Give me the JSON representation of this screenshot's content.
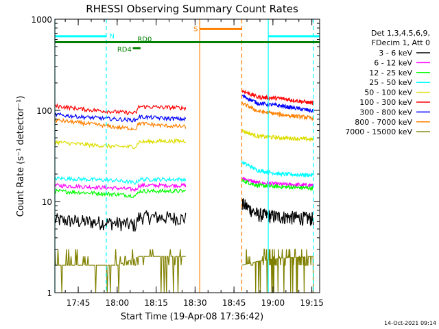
{
  "chart_data": {
    "type": "line",
    "title": "RHESSI Observing Summary Count Rates",
    "xlabel": "Start Time (19-Apr-08 17:36:42)",
    "ylabel": "Count Rate (s⁻¹ detector⁻¹)",
    "ylog": true,
    "ylim": [
      1,
      1000
    ],
    "yticks": [
      1,
      10,
      100,
      1000
    ],
    "ytick_labels": [
      "1",
      "10",
      "100",
      "1000"
    ],
    "xlim_minutes": [
      17.6,
      19.3
    ],
    "xticks": [
      "17:45",
      "18:00",
      "18:15",
      "18:30",
      "18:45",
      "19:00",
      "19:15"
    ],
    "xtick_values": [
      17.75,
      18.0,
      18.25,
      18.5,
      18.75,
      19.0,
      19.25
    ],
    "footer": "14-Oct-2021 09:14",
    "legend": {
      "position": "right",
      "header": [
        "Det 1,3,4,5,6,9,",
        "FDecim 1, Att 0"
      ],
      "entries": [
        {
          "label": "3 - 6 keV",
          "color": "#000000"
        },
        {
          "label": "6 - 12 keV",
          "color": "#ff00ff"
        },
        {
          "label": "12 - 25 keV",
          "color": "#00ff00"
        },
        {
          "label": "25 - 50 keV",
          "color": "#00ffff"
        },
        {
          "label": "50 - 100 keV",
          "color": "#dddd00"
        },
        {
          "label": "100 - 300 keV",
          "color": "#ff0000"
        },
        {
          "label": "300 - 800 keV",
          "color": "#0000ff"
        },
        {
          "label": "800 - 7000 keV",
          "color": "#ff8000"
        },
        {
          "label": "7000 - 15000 keV",
          "color": "#808000"
        }
      ]
    },
    "flags": [
      {
        "label": "N",
        "color": "#00ffff",
        "x0": 17.6,
        "x1": 17.93,
        "y": 650,
        "label_x": 17.95
      },
      {
        "label": "N",
        "color": "#00ffff",
        "x0": 18.97,
        "x1": 19.3,
        "y": 650
      },
      {
        "label": "S",
        "color": "#ff8000",
        "x0": 18.53,
        "x1": 18.8,
        "y": 780,
        "label_x": 18.49
      },
      {
        "label": "RD0",
        "color": "#008000",
        "x0": 17.6,
        "x1": 19.3,
        "y": 560,
        "label_x": 18.13
      },
      {
        "label": "RD4",
        "color": "#008000",
        "x0": 18.1,
        "x1": 18.15,
        "y": 480,
        "label_x": 18.0
      }
    ],
    "vlines": [
      {
        "x": 17.6,
        "color": "#00ffff",
        "dash": false
      },
      {
        "x": 17.93,
        "color": "#00ffff",
        "dash": true
      },
      {
        "x": 18.97,
        "color": "#00ffff",
        "dash": false
      },
      {
        "x": 19.26,
        "color": "#00ffff",
        "dash": true
      },
      {
        "x": 18.53,
        "color": "#ff8000",
        "dash": false
      },
      {
        "x": 18.8,
        "color": "#ff8000",
        "dash": true
      }
    ],
    "segments": [
      [
        17.6,
        18.44
      ],
      [
        18.8,
        19.26
      ]
    ],
    "series": [
      {
        "name": "3 - 6 keV",
        "color": "#000000",
        "seg1": [
          [
            17.6,
            6.3
          ],
          [
            17.8,
            6.0
          ],
          [
            18.0,
            5.8
          ],
          [
            18.12,
            5.5
          ],
          [
            18.14,
            6.8
          ],
          [
            18.3,
            6.7
          ],
          [
            18.44,
            6.5
          ]
        ],
        "seg2": [
          [
            18.8,
            9.5
          ],
          [
            18.9,
            7.2
          ],
          [
            19.05,
            6.8
          ],
          [
            19.26,
            6.5
          ]
        ]
      },
      {
        "name": "6 - 12 keV",
        "color": "#ff00ff",
        "seg1": [
          [
            17.6,
            15
          ],
          [
            17.8,
            14.5
          ],
          [
            18.0,
            14
          ],
          [
            18.12,
            13.5
          ],
          [
            18.14,
            15
          ],
          [
            18.3,
            15
          ],
          [
            18.44,
            15
          ]
        ],
        "seg2": [
          [
            18.8,
            18
          ],
          [
            18.9,
            16
          ],
          [
            19.05,
            15.5
          ],
          [
            19.26,
            15
          ]
        ]
      },
      {
        "name": "12 - 25 keV",
        "color": "#00ff00",
        "seg1": [
          [
            17.6,
            13
          ],
          [
            17.8,
            12.5
          ],
          [
            18.0,
            12
          ],
          [
            18.12,
            11.5
          ],
          [
            18.14,
            13
          ],
          [
            18.3,
            13
          ],
          [
            18.44,
            13
          ]
        ],
        "seg2": [
          [
            18.8,
            17
          ],
          [
            18.9,
            15
          ],
          [
            19.05,
            14.5
          ],
          [
            19.26,
            14
          ]
        ]
      },
      {
        "name": "25 - 50 keV",
        "color": "#00ffff",
        "seg1": [
          [
            17.6,
            18
          ],
          [
            17.8,
            17.5
          ],
          [
            18.0,
            17
          ],
          [
            18.12,
            16
          ],
          [
            18.14,
            17.5
          ],
          [
            18.3,
            17.5
          ],
          [
            18.44,
            17.5
          ]
        ],
        "seg2": [
          [
            18.8,
            27
          ],
          [
            18.9,
            22
          ],
          [
            19.05,
            20
          ],
          [
            19.26,
            19.5
          ]
        ]
      },
      {
        "name": "50 - 100 keV",
        "color": "#dddd00",
        "seg1": [
          [
            17.6,
            45
          ],
          [
            17.8,
            42
          ],
          [
            18.0,
            40
          ],
          [
            18.12,
            40
          ],
          [
            18.14,
            45
          ],
          [
            18.3,
            46
          ],
          [
            18.44,
            46
          ]
        ],
        "seg2": [
          [
            18.8,
            60
          ],
          [
            18.9,
            52
          ],
          [
            19.05,
            50
          ],
          [
            19.26,
            48
          ]
        ]
      },
      {
        "name": "100 - 300 keV",
        "color": "#ff0000",
        "seg1": [
          [
            17.6,
            112
          ],
          [
            17.8,
            102
          ],
          [
            18.0,
            96
          ],
          [
            18.12,
            93
          ],
          [
            18.14,
            110
          ],
          [
            18.3,
            108
          ],
          [
            18.44,
            106
          ]
        ],
        "seg2": [
          [
            18.8,
            165
          ],
          [
            18.9,
            140
          ],
          [
            19.05,
            135
          ],
          [
            19.26,
            120
          ]
        ]
      },
      {
        "name": "300 - 800 keV",
        "color": "#0000ff",
        "seg1": [
          [
            17.6,
            90
          ],
          [
            17.8,
            84
          ],
          [
            18.0,
            80
          ],
          [
            18.12,
            78
          ],
          [
            18.14,
            85
          ],
          [
            18.3,
            82
          ],
          [
            18.44,
            80
          ]
        ],
        "seg2": [
          [
            18.8,
            145
          ],
          [
            18.9,
            120
          ],
          [
            19.05,
            112
          ],
          [
            19.26,
            98
          ]
        ]
      },
      {
        "name": "800 - 7000 keV",
        "color": "#ff8000",
        "seg1": [
          [
            17.6,
            78
          ],
          [
            17.8,
            72
          ],
          [
            18.0,
            65
          ],
          [
            18.12,
            63
          ],
          [
            18.14,
            72
          ],
          [
            18.3,
            68
          ],
          [
            18.44,
            66
          ]
        ],
        "seg2": [
          [
            18.8,
            120
          ],
          [
            18.9,
            98
          ],
          [
            19.05,
            90
          ],
          [
            19.26,
            82
          ]
        ]
      },
      {
        "name": "7000 - 15000 keV",
        "color": "#808000",
        "seg1": [
          [
            17.6,
            2.0
          ],
          [
            17.8,
            2.0
          ],
          [
            18.0,
            2.0
          ],
          [
            18.12,
            2.4
          ],
          [
            18.14,
            2.5
          ],
          [
            18.3,
            2.5
          ],
          [
            18.44,
            2.5
          ]
        ],
        "seg2": [
          [
            18.8,
            2.0
          ],
          [
            18.9,
            2.2
          ],
          [
            19.05,
            2.4
          ],
          [
            19.26,
            2.5
          ]
        ]
      }
    ]
  }
}
